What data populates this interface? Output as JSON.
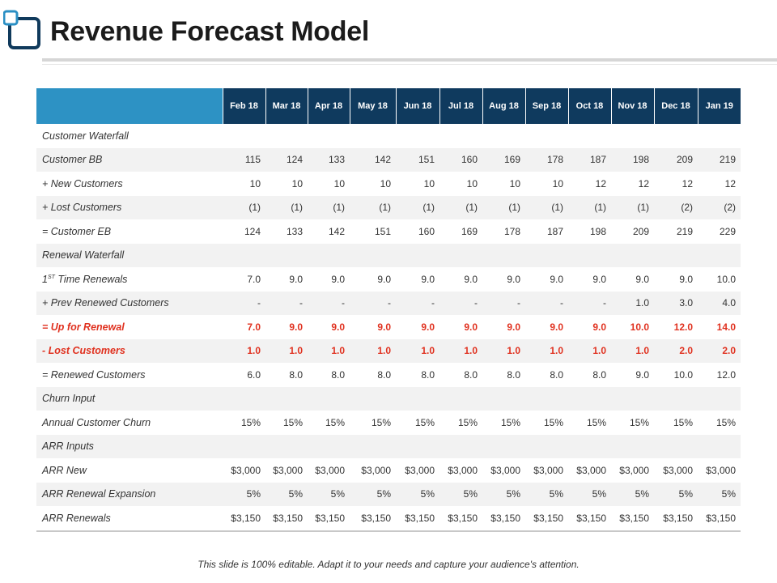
{
  "title": "Revenue Forecast Model",
  "colors": {
    "header_dark": "#0f3a5e",
    "header_corner": "#2d92c4",
    "highlight": "#e0311f"
  },
  "table": {
    "months": [
      "Feb 18",
      "Mar 18",
      "Apr 18",
      "May 18",
      "Jun 18",
      "Jul 18",
      "Aug 18",
      "Sep 18",
      "Oct 18",
      "Nov 18",
      "Dec 18",
      "Jan 19"
    ],
    "rows": [
      {
        "label": "Customer Waterfall",
        "values": [
          "",
          "",
          "",
          "",
          "",
          "",
          "",
          "",
          "",
          "",
          "",
          ""
        ]
      },
      {
        "label": "Customer BB",
        "values": [
          "115",
          "124",
          "133",
          "142",
          "151",
          "160",
          "169",
          "178",
          "187",
          "198",
          "209",
          "219"
        ]
      },
      {
        "label": "+ New Customers",
        "values": [
          "10",
          "10",
          "10",
          "10",
          "10",
          "10",
          "10",
          "10",
          "12",
          "12",
          "12",
          "12"
        ]
      },
      {
        "label": "+ Lost Customers",
        "values": [
          "(1)",
          "(1)",
          "(1)",
          "(1)",
          "(1)",
          "(1)",
          "(1)",
          "(1)",
          "(1)",
          "(1)",
          "(2)",
          "(2)"
        ]
      },
      {
        "label": "= Customer EB",
        "values": [
          "124",
          "133",
          "142",
          "151",
          "160",
          "169",
          "178",
          "187",
          "198",
          "209",
          "219",
          "229"
        ]
      },
      {
        "label": "Renewal Waterfall",
        "values": [
          "",
          "",
          "",
          "",
          "",
          "",
          "",
          "",
          "",
          "",
          "",
          ""
        ]
      },
      {
        "label": "1ST Time Renewals",
        "label_main": "Time Renewals",
        "label_num": "1",
        "label_sup": "ST",
        "values": [
          "7.0",
          "9.0",
          "9.0",
          "9.0",
          "9.0",
          "9.0",
          "9.0",
          "9.0",
          "9.0",
          "9.0",
          "9.0",
          "10.0"
        ]
      },
      {
        "label": "+ Prev Renewed Customers",
        "values": [
          "-",
          "-",
          "-",
          "-",
          "-",
          "-",
          "-",
          "-",
          "-",
          "1.0",
          "3.0",
          "4.0"
        ]
      },
      {
        "label": "= Up for Renewal",
        "highlight": true,
        "values": [
          "7.0",
          "9.0",
          "9.0",
          "9.0",
          "9.0",
          "9.0",
          "9.0",
          "9.0",
          "9.0",
          "10.0",
          "12.0",
          "14.0"
        ]
      },
      {
        "label": "- Lost Customers",
        "highlight": true,
        "values": [
          "1.0",
          "1.0",
          "1.0",
          "1.0",
          "1.0",
          "1.0",
          "1.0",
          "1.0",
          "1.0",
          "1.0",
          "2.0",
          "2.0"
        ]
      },
      {
        "label": "= Renewed Customers",
        "values": [
          "6.0",
          "8.0",
          "8.0",
          "8.0",
          "8.0",
          "8.0",
          "8.0",
          "8.0",
          "8.0",
          "9.0",
          "10.0",
          "12.0"
        ]
      },
      {
        "label": "Churn Input",
        "values": [
          "",
          "",
          "",
          "",
          "",
          "",
          "",
          "",
          "",
          "",
          "",
          ""
        ]
      },
      {
        "label": "Annual Customer Churn",
        "values": [
          "15%",
          "15%",
          "15%",
          "15%",
          "15%",
          "15%",
          "15%",
          "15%",
          "15%",
          "15%",
          "15%",
          "15%"
        ]
      },
      {
        "label": "ARR Inputs",
        "values": [
          "",
          "",
          "",
          "",
          "",
          "",
          "",
          "",
          "",
          "",
          "",
          ""
        ]
      },
      {
        "label": "ARR New",
        "values": [
          "$3,000",
          "$3,000",
          "$3,000",
          "$3,000",
          "$3,000",
          "$3,000",
          "$3,000",
          "$3,000",
          "$3,000",
          "$3,000",
          "$3,000",
          "$3,000"
        ]
      },
      {
        "label": "ARR Renewal Expansion",
        "values": [
          "5%",
          "5%",
          "5%",
          "5%",
          "5%",
          "5%",
          "5%",
          "5%",
          "5%",
          "5%",
          "5%",
          "5%"
        ]
      },
      {
        "label": "ARR Renewals",
        "values": [
          "$3,150",
          "$3,150",
          "$3,150",
          "$3,150",
          "$3,150",
          "$3,150",
          "$3,150",
          "$3,150",
          "$3,150",
          "$3,150",
          "$3,150",
          "$3,150"
        ]
      }
    ]
  },
  "footer": "This slide is 100% editable. Adapt it to your needs and capture your audience's attention."
}
